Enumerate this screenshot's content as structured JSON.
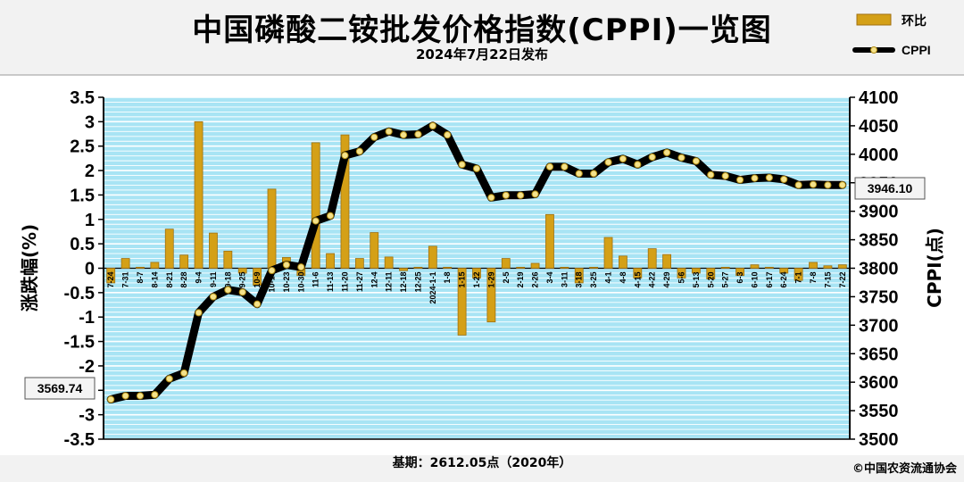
{
  "title": "中国磷酸二铵批发价格指数(CPPI)一览图",
  "subtitle": "2024年7月22日发布",
  "base_note": "基期：2612.05点（2020年）",
  "copyright": "©中国农资流通协会",
  "chart_data": {
    "type": "bar+line",
    "ylabel_left": "涨跌幅(%)",
    "ylabel_right": "CPPI(点)",
    "ylim_left": [
      -3.5,
      3.5
    ],
    "ylim_right": [
      3500,
      4100
    ],
    "left_ticks": [
      "3.5",
      "3",
      "2.5",
      "2",
      "1.5",
      "1",
      "0.5",
      "0",
      "-0.5",
      "-1",
      "-1.5",
      "-2",
      "-2.5",
      "-3",
      "-3.5"
    ],
    "right_ticks": [
      "4100",
      "4050",
      "4000",
      "3950",
      "3900",
      "3850",
      "3800",
      "3750",
      "3700",
      "3650",
      "3600",
      "3550",
      "3500"
    ],
    "legend": {
      "bar": "环比",
      "line": "CPPI"
    },
    "colors": {
      "bar": "#d4a017",
      "bar_edge": "#a07010",
      "line": "#000000",
      "marker": "#f5e28a",
      "plot_bg": "#a8e4f4",
      "grid": "#ffffff"
    },
    "categories": [
      "7-24",
      "7-31",
      "8-7",
      "8-14",
      "8-21",
      "8-28",
      "9-4",
      "9-11",
      "9-18",
      "9-25",
      "10-9",
      "10-16",
      "10-23",
      "10-30",
      "11-6",
      "11-13",
      "11-20",
      "11-27",
      "12-4",
      "12-11",
      "12-18",
      "12-25",
      "2024-1-1",
      "1-8",
      "1-15",
      "1-22",
      "1-29",
      "2-5",
      "2-19",
      "2-26",
      "3-4",
      "3-11",
      "3-18",
      "3-25",
      "4-1",
      "4-8",
      "4-15",
      "4-22",
      "4-29",
      "5-6",
      "5-13",
      "5-20",
      "5-27",
      "6-3",
      "6-10",
      "6-17",
      "6-24",
      "7-1",
      "7-8",
      "7-15",
      "7-22"
    ],
    "series": [
      {
        "name": "环比",
        "type": "bar",
        "values": [
          -0.3,
          0.2,
          0.02,
          0.12,
          0.8,
          0.27,
          3.0,
          0.72,
          0.35,
          -0.1,
          -0.35,
          1.62,
          0.22,
          -0.15,
          2.57,
          0.3,
          2.73,
          0.2,
          0.73,
          0.23,
          -0.05,
          0.02,
          0.45,
          0.02,
          -1.37,
          -0.2,
          -1.1,
          0.2,
          0.02,
          0.1,
          1.1,
          0.02,
          -0.3,
          0.02,
          0.63,
          0.25,
          -0.2,
          0.4,
          0.28,
          -0.2,
          -0.1,
          -0.22,
          0.02,
          -0.15,
          0.07,
          0.02,
          -0.1,
          -0.25,
          0.12,
          0.05,
          0.07
        ]
      },
      {
        "name": "CPPI",
        "type": "line",
        "values": [
          3569.74,
          3576,
          3576,
          3578,
          3606,
          3616,
          3722,
          3750,
          3762,
          3758,
          3737,
          3796,
          3806,
          3802,
          3883,
          3892,
          3998,
          4005,
          4030,
          4040,
          4034,
          4035,
          4050,
          4034,
          3982,
          3975,
          3924,
          3928,
          3928,
          3930,
          3978,
          3978,
          3966,
          3966,
          3986,
          3992,
          3982,
          3995,
          4003,
          3994,
          3988,
          3964,
          3962,
          3955,
          3958,
          3959,
          3956,
          3946,
          3947,
          3946,
          3946.1
        ]
      }
    ],
    "callouts": {
      "first": "3569.74",
      "last": "3946.10"
    }
  }
}
